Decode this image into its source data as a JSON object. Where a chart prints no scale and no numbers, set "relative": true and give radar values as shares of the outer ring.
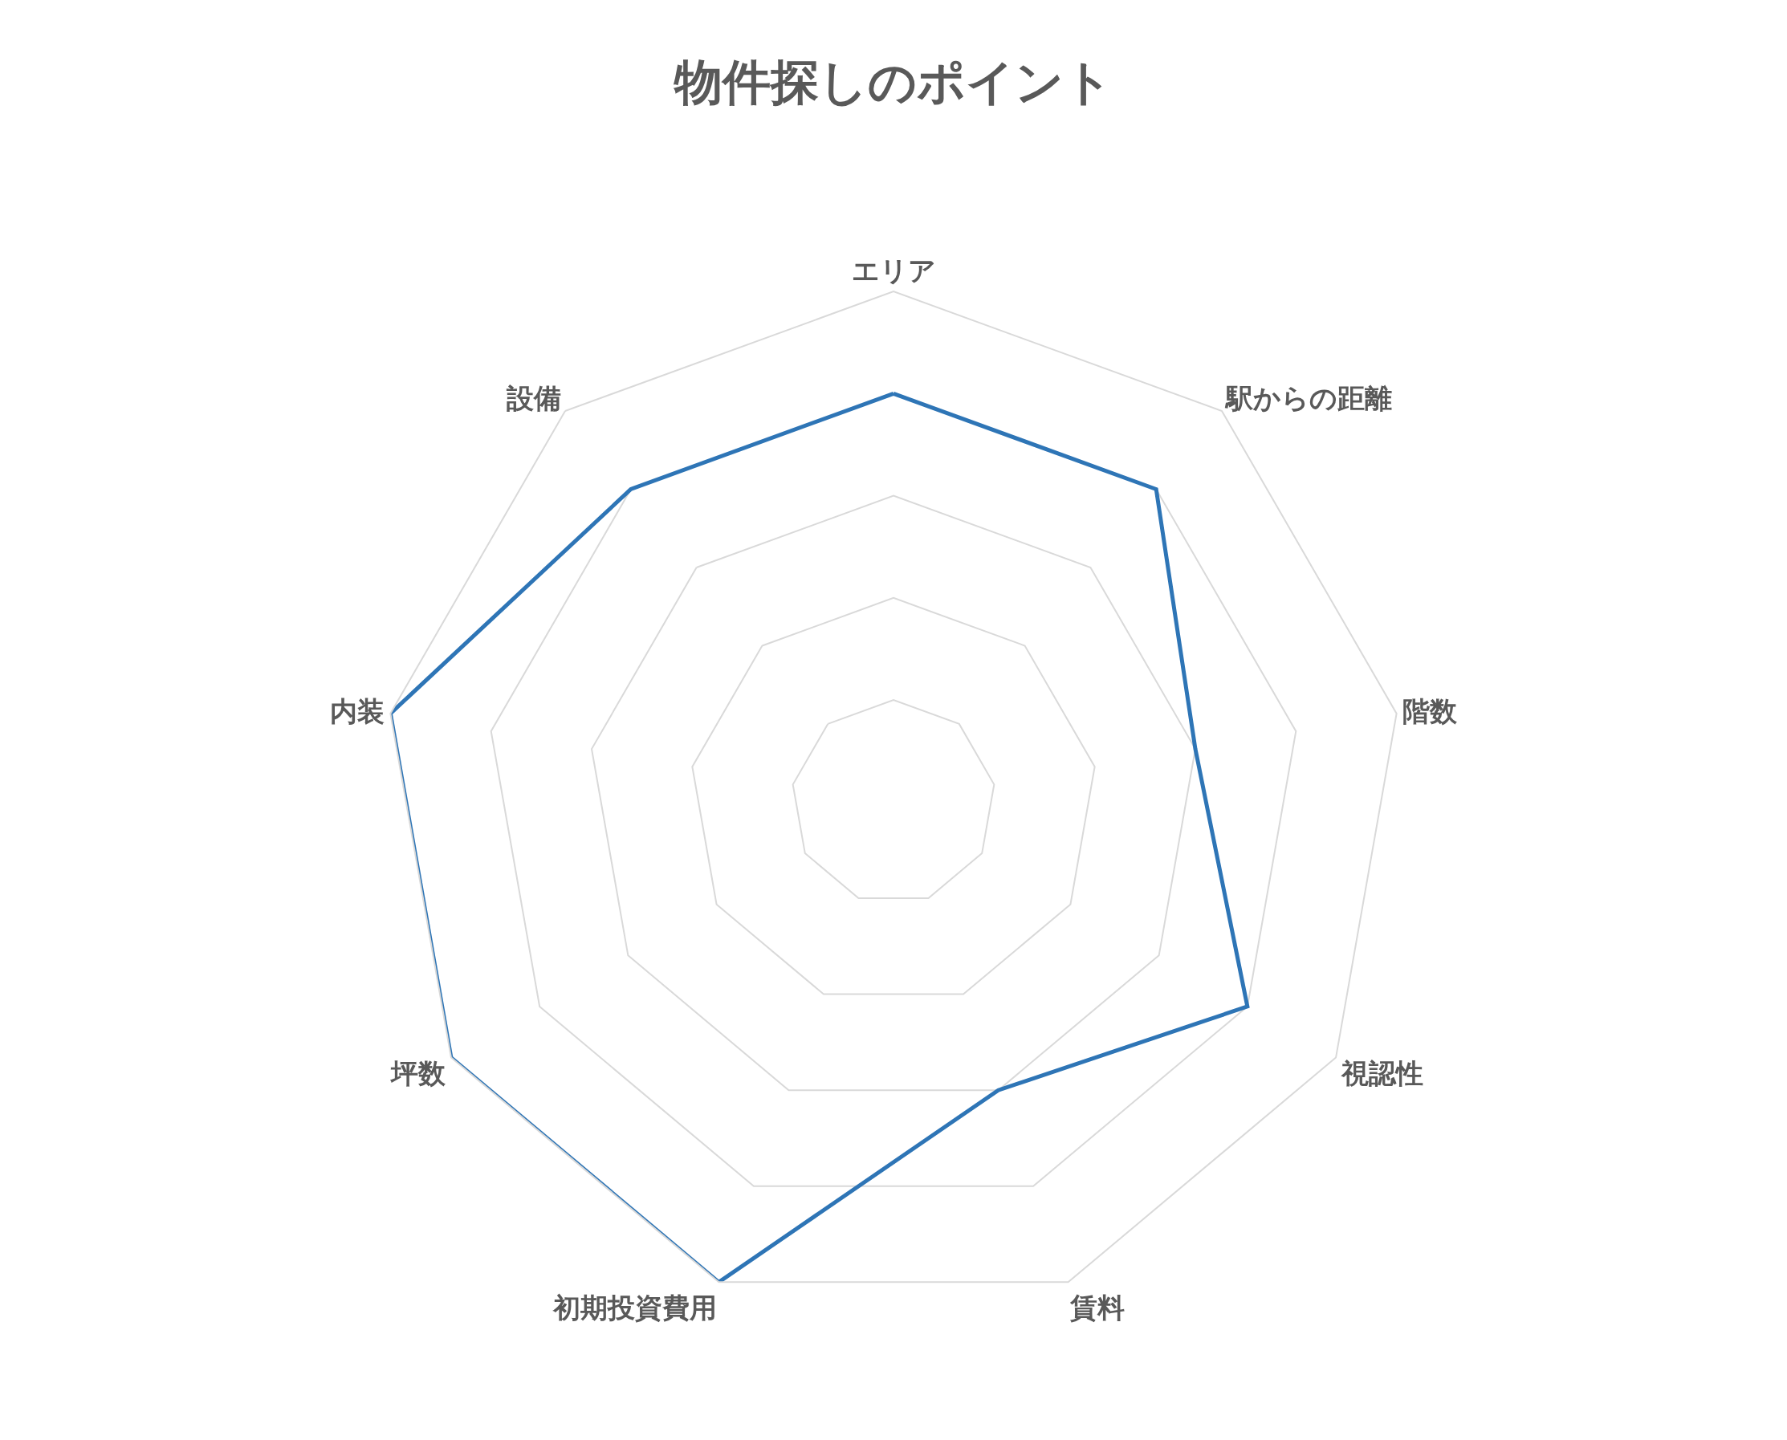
{
  "chart_data": {
    "type": "radar",
    "title": "物件探しのポイント",
    "categories": [
      "エリア",
      "駅からの距離",
      "階数",
      "視認性",
      "賃料",
      "初期投資費用",
      "坪数",
      "内装",
      "設備"
    ],
    "series": [
      {
        "color": "#2e75b6",
        "values": [
          0.8,
          0.8,
          0.6,
          0.8,
          0.6,
          1,
          1,
          1,
          0.8
        ]
      }
    ],
    "relative": true,
    "grid": true,
    "marker": "none"
  }
}
